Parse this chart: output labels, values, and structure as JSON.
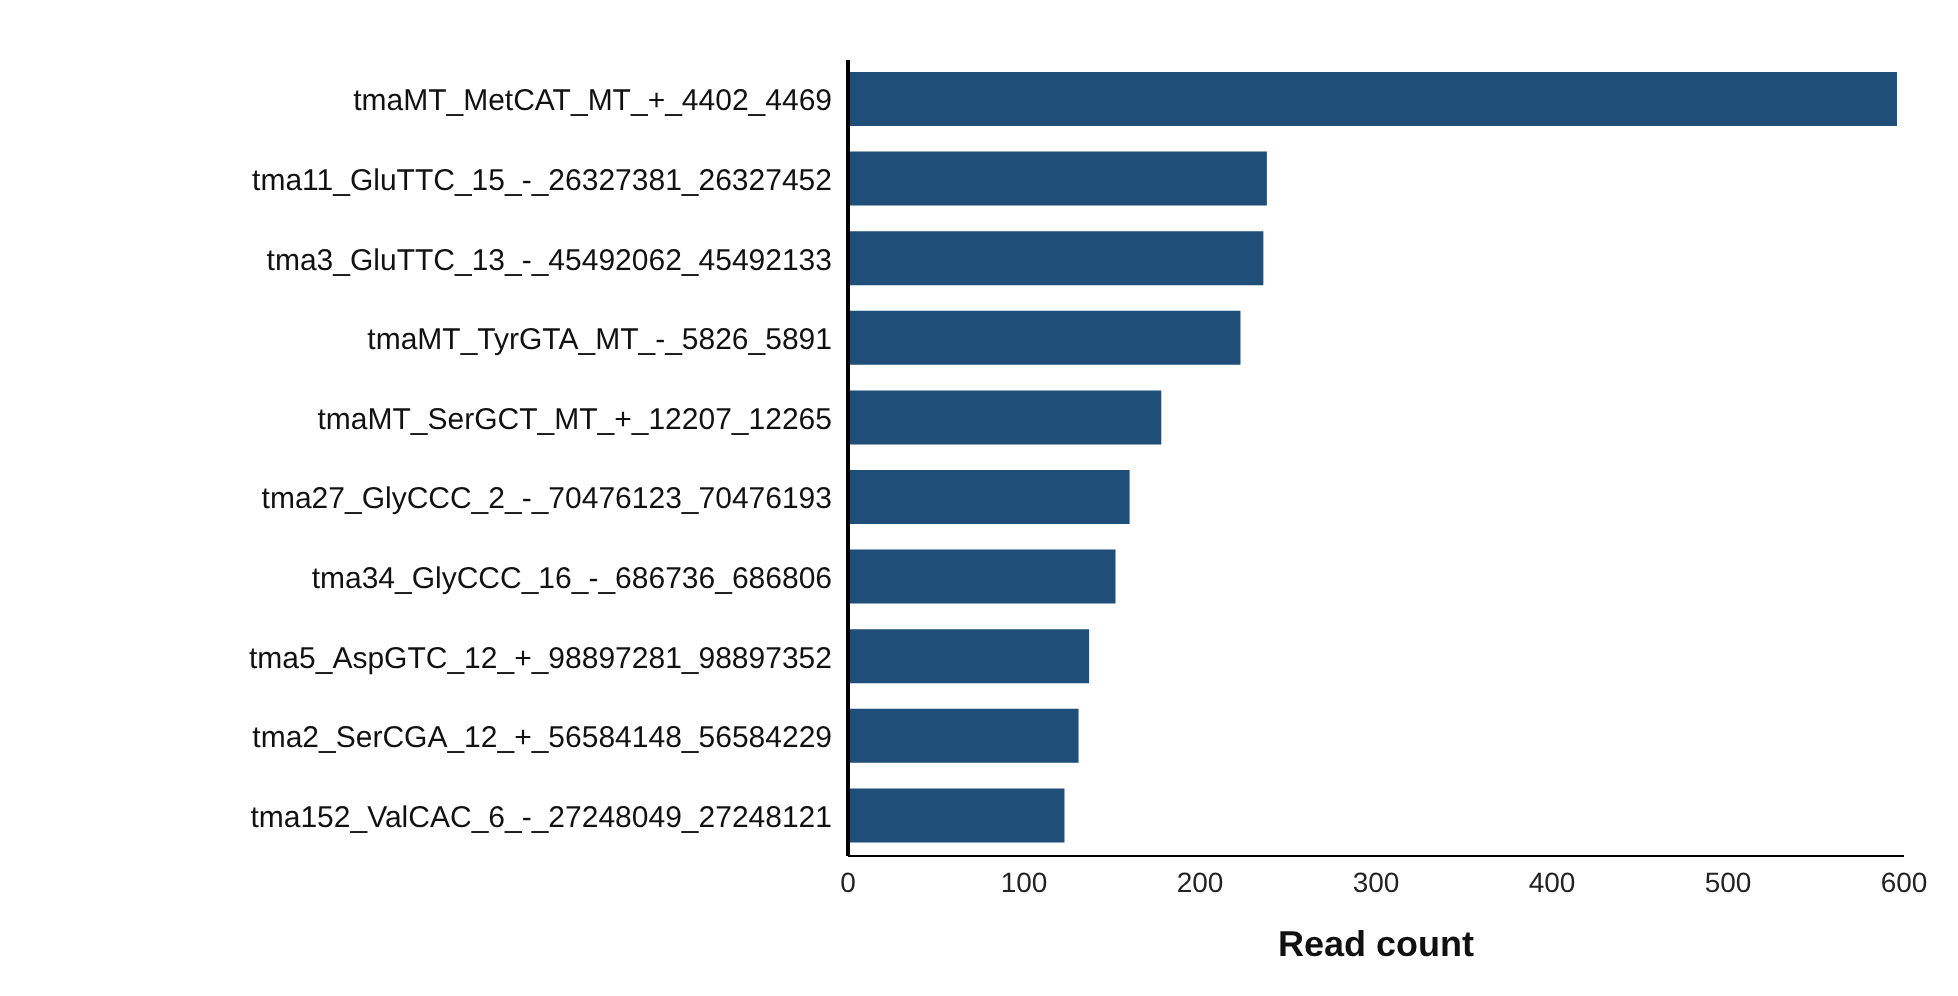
{
  "chart_data": {
    "type": "bar",
    "orientation": "horizontal",
    "xlabel": "Read count",
    "categories": [
      "tmaMT_MetCAT_MT_+_4402_4469",
      "tma11_GluTTC_15_-_26327381_26327452",
      "tma3_GluTTC_13_-_45492062_45492133",
      "tmaMT_TyrGTA_MT_-_5826_5891",
      "tmaMT_SerGCT_MT_+_12207_12265",
      "tma27_GlyCCC_2_-_70476123_70476193",
      "tma34_GlyCCC_16_-_686736_686806",
      "tma5_AspGTC_12_+_98897281_98897352",
      "tma2_SerCGA_12_+_56584148_56584229",
      "tma152_ValCAC_6_-_27248049_27248121"
    ],
    "values": [
      596,
      238,
      236,
      223,
      178,
      160,
      152,
      137,
      131,
      123
    ],
    "color": "#1f4e79",
    "xlim": [
      0,
      600
    ],
    "xticks": [
      0,
      100,
      200,
      300,
      400,
      500,
      600
    ],
    "grid": false
  }
}
